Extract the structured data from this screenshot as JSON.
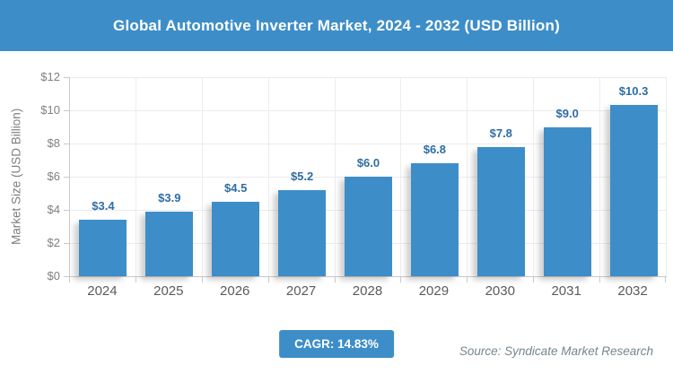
{
  "header": {
    "title": "Global Automotive Inverter Market, 2024 - 2032 (USD Billion)",
    "background": "#3d8ec8",
    "text_color": "#ffffff"
  },
  "chart_data": {
    "type": "bar",
    "title": "Global Automotive Inverter Market, 2024 - 2032 (USD Billion)",
    "categories": [
      "2024",
      "2025",
      "2026",
      "2027",
      "2028",
      "2029",
      "2030",
      "2031",
      "2032"
    ],
    "values": [
      3.4,
      3.9,
      4.5,
      5.2,
      6.0,
      6.8,
      7.8,
      9.0,
      10.3
    ],
    "value_labels": [
      "$3.4",
      "$3.9",
      "$4.5",
      "$5.2",
      "$6.0",
      "$6.8",
      "$7.8",
      "$9.0",
      "$10.3"
    ],
    "xlabel": "",
    "ylabel": "Market Size (USD Billion)",
    "ylim": [
      0,
      12
    ],
    "ytick_step": 2,
    "ytick_labels": [
      "$0",
      "$2",
      "$4",
      "$6",
      "$8",
      "$10",
      "$12"
    ],
    "grid": true,
    "legend": false,
    "bar_color": "#3d8ec8",
    "value_label_color": "#2e6da4"
  },
  "footer": {
    "cagr_label": "CAGR: 14.83%",
    "source": "Source: Syndicate Market Research",
    "badge_color": "#3d8ec8"
  }
}
